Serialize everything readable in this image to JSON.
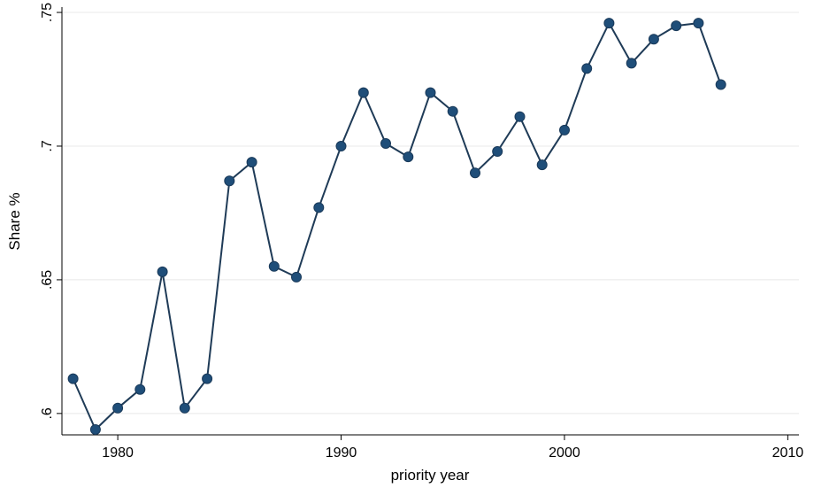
{
  "chart_data": {
    "type": "line",
    "xlabel": "priority year",
    "ylabel": "Share %",
    "xlim": [
      1977.5,
      2010.5
    ],
    "ylim": [
      0.592,
      0.752
    ],
    "xticks": [
      1980,
      1990,
      2000,
      2010
    ],
    "xtick_labels": [
      "1980",
      "1990",
      "2000",
      "2010"
    ],
    "yticks": [
      0.6,
      0.65,
      0.7,
      0.75
    ],
    "ytick_labels": [
      ".6",
      ".65",
      ".7",
      ".75"
    ],
    "grid": "horizontal",
    "series": [
      {
        "color": "#1f4e79",
        "x": [
          1978,
          1979,
          1980,
          1981,
          1982,
          1983,
          1984,
          1985,
          1986,
          1987,
          1988,
          1989,
          1990,
          1991,
          1992,
          1993,
          1994,
          1995,
          1996,
          1997,
          1998,
          1999,
          2000,
          2001,
          2002,
          2003,
          2004,
          2005,
          2006,
          2007
        ],
        "y": [
          0.613,
          0.594,
          0.602,
          0.609,
          0.653,
          0.602,
          0.613,
          0.687,
          0.694,
          0.655,
          0.651,
          0.677,
          0.7,
          0.72,
          0.701,
          0.696,
          0.72,
          0.713,
          0.69,
          0.698,
          0.711,
          0.693,
          0.706,
          0.729,
          0.746,
          0.731,
          0.74,
          0.745,
          0.746,
          0.723
        ]
      }
    ]
  }
}
